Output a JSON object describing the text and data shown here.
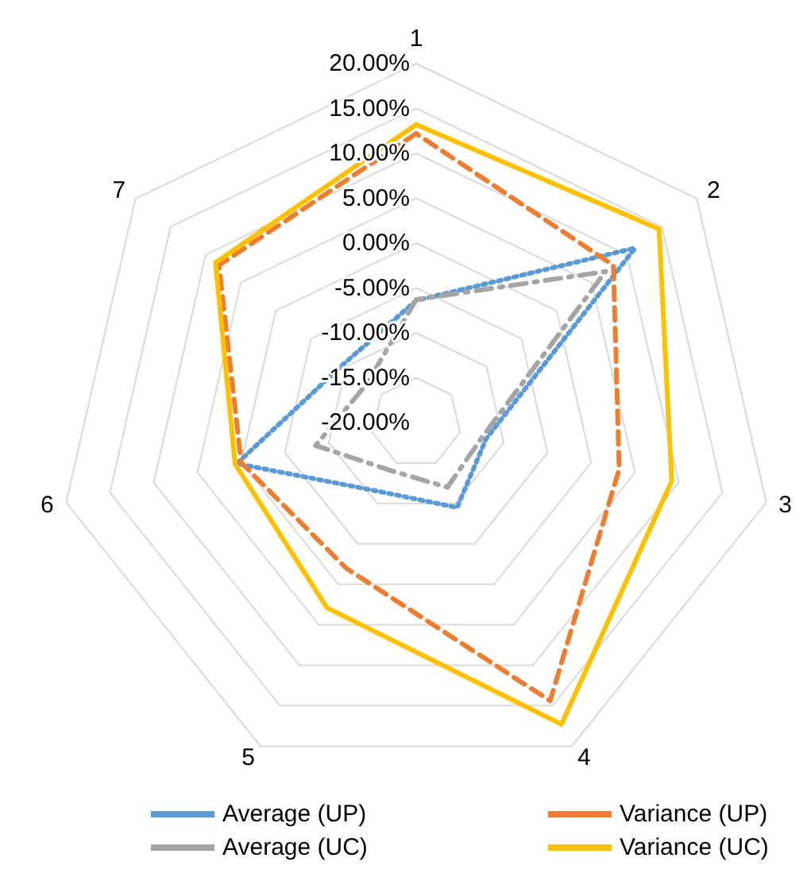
{
  "chart_data": {
    "type": "radar",
    "categories": [
      "1",
      "2",
      "3",
      "4",
      "5",
      "6",
      "7"
    ],
    "ylim": [
      -20,
      20
    ],
    "yticks": [
      {
        "value": -20,
        "label": "-20.00%"
      },
      {
        "value": -15,
        "label": "-15.00%"
      },
      {
        "value": -10,
        "label": "-10.00%"
      },
      {
        "value": -5,
        "label": "-5.00%"
      },
      {
        "value": 0,
        "label": "0.00%"
      },
      {
        "value": 5,
        "label": "5.00%"
      },
      {
        "value": 10,
        "label": "10.00%"
      },
      {
        "value": 15,
        "label": "15.00%"
      },
      {
        "value": 20,
        "label": "20.00%"
      }
    ],
    "grid": true,
    "legend": "bottom",
    "marker": "none",
    "series": [
      {
        "name": "Average (UP)",
        "color": "#5b9bd5",
        "line_style": "dotted",
        "values": [
          -6.4,
          11.2,
          -12,
          -9.5,
          -11.4,
          0.5,
          -9.6
        ]
      },
      {
        "name": "Variance (UP)",
        "color": "#ed7d31",
        "line_style": "dashed",
        "values": [
          12.2,
          8.1,
          3.2,
          14.4,
          -2,
          0,
          8.1
        ]
      },
      {
        "name": "Average (UC)",
        "color": "#a5a5a5",
        "line_style": "dashdot",
        "values": [
          -6.3,
          7,
          -12.5,
          -12,
          -14,
          -8.5,
          -13
        ]
      },
      {
        "name": "Variance (UC)",
        "color": "#ffc000",
        "line_style": "solid",
        "values": [
          13.2,
          14.6,
          9.2,
          17.3,
          2.9,
          0.7,
          8.6
        ]
      }
    ]
  }
}
